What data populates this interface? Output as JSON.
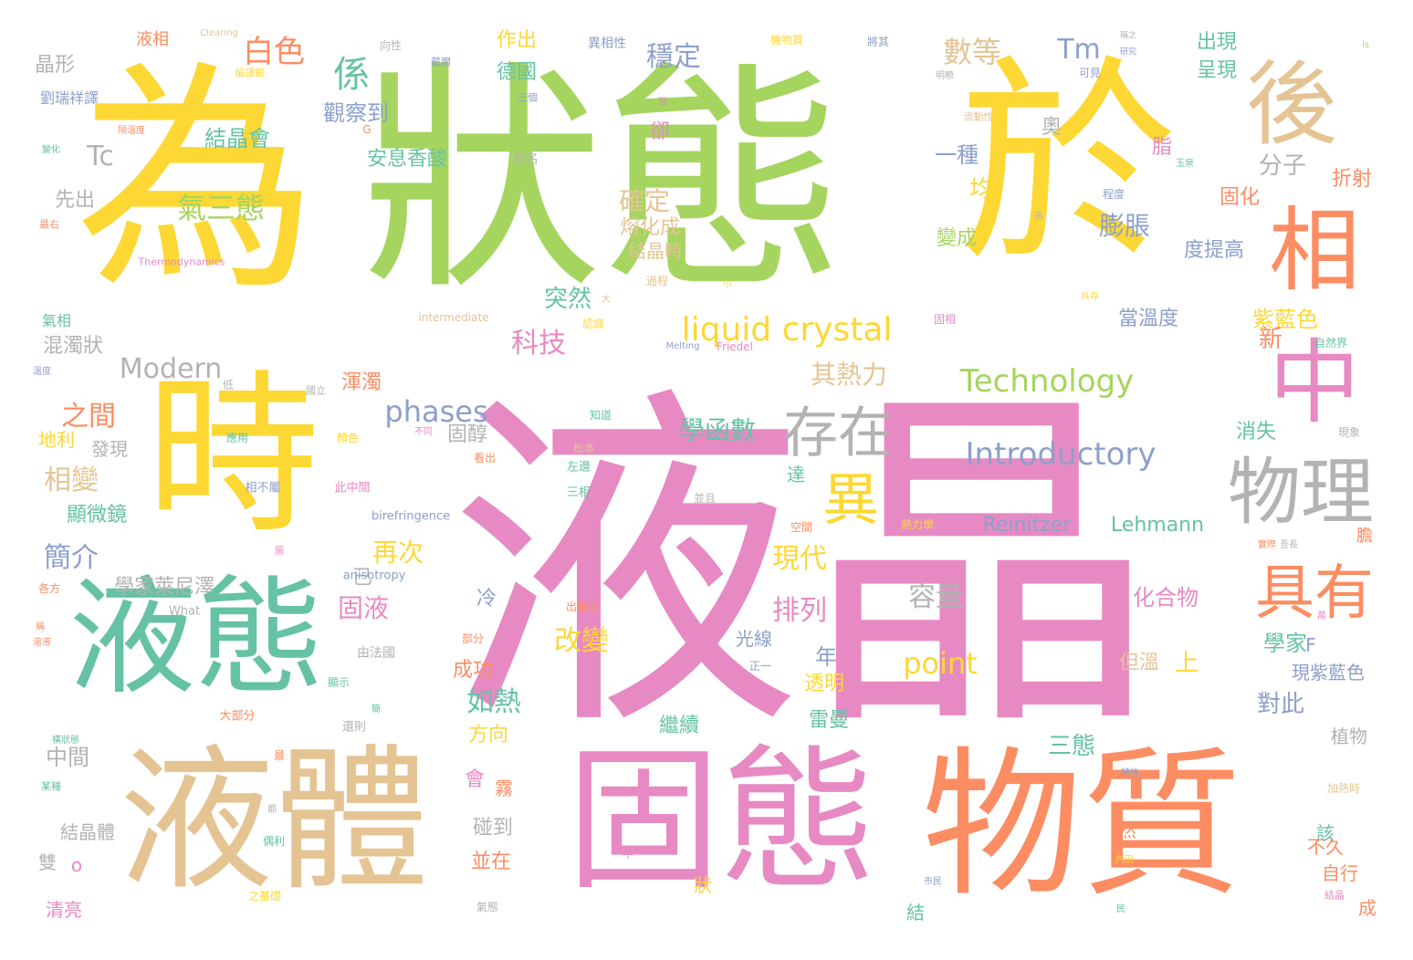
{
  "palette": [
    "#fdd835",
    "#a5d55f",
    "#e78ac3",
    "#fc8d62",
    "#66c2a5",
    "#e5c494",
    "#b3b3b3",
    "#8da0cb"
  ],
  "words": {
    "w01": {
      "text": "為"
    },
    "w02": {
      "text": "狀態"
    },
    "w03": {
      "text": "於"
    },
    "w04": {
      "text": "液晶"
    },
    "w05": {
      "text": "時"
    },
    "w06": {
      "text": "液態"
    },
    "w07": {
      "text": "液體"
    },
    "w08": {
      "text": "固態"
    },
    "w09": {
      "text": "物質"
    },
    "w10": {
      "text": "後"
    },
    "w11": {
      "text": "相"
    },
    "w12": {
      "text": "中"
    },
    "w13": {
      "text": "物理"
    },
    "w14": {
      "text": "存在"
    },
    "w15": {
      "text": "具有"
    },
    "w16": {
      "text": "異"
    },
    "w17": {
      "text": "係"
    },
    "w18": {
      "text": "liquid crystal"
    },
    "w19": {
      "text": "Technology"
    },
    "w20": {
      "text": "Introductory"
    },
    "w21": {
      "text": "phases"
    },
    "w22": {
      "text": "Modern"
    },
    "w23": {
      "text": "point"
    },
    "w24": {
      "text": "數等"
    },
    "w25": {
      "text": "穩定"
    },
    "w26": {
      "text": "白色"
    },
    "w27": {
      "text": "Tm"
    },
    "w28": {
      "text": "Tc"
    },
    "w29": {
      "text": "氣三態"
    },
    "w30": {
      "text": "Reinitzer"
    },
    "w31": {
      "text": "Lehmann"
    },
    "w32": {
      "text": "之間"
    },
    "w33": {
      "text": "相變"
    },
    "w34": {
      "text": "簡介"
    },
    "w35": {
      "text": "混濁狀"
    },
    "w36": {
      "text": "其熱力"
    },
    "w37": {
      "text": "學函數"
    },
    "w38": {
      "text": "膨脹"
    },
    "w39": {
      "text": "容量"
    },
    "w40": {
      "text": "化合物"
    },
    "w41": {
      "text": "現代"
    },
    "w42": {
      "text": "排列"
    },
    "w43": {
      "text": "改變"
    },
    "w44": {
      "text": "如熱"
    },
    "w45": {
      "text": "科技"
    },
    "w46": {
      "text": "固液"
    },
    "w47": {
      "text": "突然"
    },
    "w48": {
      "text": "紫藍色"
    },
    "w49": {
      "text": "學家萊尼澤"
    },
    "w50": {
      "text": "再次"
    },
    "w51": {
      "text": "確定"
    },
    "w52": {
      "text": "熔化成"
    },
    "w53": {
      "text": "結晶時"
    },
    "w54": {
      "text": "觀察到"
    },
    "w55": {
      "text": "安息香酸"
    },
    "w56": {
      "text": "結晶會"
    },
    "w57": {
      "text": "德國"
    },
    "w58": {
      "text": "作出"
    },
    "w59": {
      "text": "出現"
    },
    "w60": {
      "text": "呈現"
    },
    "w61": {
      "text": "分子"
    },
    "w62": {
      "text": "折射"
    },
    "w63": {
      "text": "固化"
    },
    "w64": {
      "text": "度提高"
    },
    "w65": {
      "text": "當溫度"
    },
    "w66": {
      "text": "變成"
    },
    "w67": {
      "text": "一種"
    },
    "w68": {
      "text": "均"
    },
    "w69": {
      "text": "新"
    },
    "w70": {
      "text": "消失"
    },
    "w71": {
      "text": "晶形"
    },
    "w72": {
      "text": "先出"
    },
    "w73": {
      "text": "劉瑞祥譯"
    },
    "w74": {
      "text": "液相"
    },
    "w75": {
      "text": "氣相"
    },
    "w76": {
      "text": "地利"
    },
    "w77": {
      "text": "發現"
    },
    "w78": {
      "text": "顯微鏡"
    },
    "w79": {
      "text": "中間"
    },
    "w80": {
      "text": "結晶體"
    },
    "w81": {
      "text": "清亮"
    },
    "w82": {
      "text": "雙"
    },
    "w83": {
      "text": "渾濁"
    },
    "w84": {
      "text": "固醇"
    },
    "w85": {
      "text": "已"
    },
    "w86": {
      "text": "冷"
    },
    "w87": {
      "text": "成功"
    },
    "w88": {
      "text": "方向"
    },
    "w89": {
      "text": "會"
    },
    "w90": {
      "text": "霧"
    },
    "w91": {
      "text": "碰到"
    },
    "w92": {
      "text": "並在"
    },
    "w93": {
      "text": "光線"
    },
    "w94": {
      "text": "年"
    },
    "w95": {
      "text": "透明"
    },
    "w96": {
      "text": "繼續"
    },
    "w97": {
      "text": "雷曼"
    },
    "w98": {
      "text": "對此"
    },
    "w99": {
      "text": "學家"
    },
    "w100": {
      "text": "上"
    },
    "w101": {
      "text": "但溫"
    },
    "w102": {
      "text": "三態"
    },
    "w103": {
      "text": "現紫藍色"
    },
    "w104": {
      "text": "植物"
    },
    "w105": {
      "text": "該"
    },
    "w106": {
      "text": "不久"
    },
    "w107": {
      "text": "自行"
    },
    "w108": {
      "text": "成"
    },
    "w109": {
      "text": "然"
    },
    "w110": {
      "text": "狀"
    },
    "w111": {
      "text": "結"
    },
    "w112": {
      "text": "卻"
    },
    "w113": {
      "text": "奧"
    },
    "w114": {
      "text": "脂"
    },
    "w115": {
      "text": "達"
    },
    "w116": {
      "text": "F"
    },
    "w117": {
      "text": "o"
    },
    "w118": {
      "text": "Thermodynamics"
    },
    "w119": {
      "text": "intermediate"
    },
    "w120": {
      "text": "Melting"
    },
    "w121": {
      "text": "Friedel"
    },
    "w122": {
      "text": "birefringence"
    },
    "w123": {
      "text": "anisotropy"
    },
    "w124": {
      "text": "What"
    },
    "w125": {
      "text": "Clearing"
    },
    "w126": {
      "text": "is"
    },
    "w127": {
      "text": "G"
    },
    "w128": {
      "text": "取名"
    },
    "w129": {
      "text": "三個"
    },
    "w130": {
      "text": "向性"
    },
    "w131": {
      "text": "異相性"
    },
    "w132": {
      "text": "機物質"
    },
    "w133": {
      "text": "將其"
    },
    "w134": {
      "text": "戴爾"
    },
    "w135": {
      "text": "可見"
    },
    "w136": {
      "text": "流動性"
    },
    "w137": {
      "text": "程度"
    },
    "w138": {
      "text": "過程"
    },
    "w139": {
      "text": "知道"
    },
    "w140": {
      "text": "松本"
    },
    "w141": {
      "text": "左邊"
    },
    "w142": {
      "text": "三相"
    },
    "w143": {
      "text": "相不屬"
    },
    "w144": {
      "text": "此中間"
    },
    "w145": {
      "text": "出鮮明"
    },
    "w146": {
      "text": "部分"
    },
    "w147": {
      "text": "由法國"
    },
    "w148": {
      "text": "顯示"
    },
    "w149": {
      "text": "大部分"
    },
    "w150": {
      "text": "還則"
    },
    "w151": {
      "text": "空間"
    },
    "w152": {
      "text": "熱力學"
    },
    "w153": {
      "text": "並且"
    },
    "w154": {
      "text": "正一"
    },
    "w155": {
      "text": "一中"
    },
    "w156": {
      "text": "固相"
    },
    "w157": {
      "text": "自然界"
    },
    "w158": {
      "text": "現象"
    },
    "w159": {
      "text": "加熱時"
    },
    "w160": {
      "text": "結晶"
    },
    "w161": {
      "text": "氣態"
    },
    "w162": {
      "text": "之基礎"
    },
    "w163": {
      "text": "偶利"
    },
    "w164": {
      "text": "某種"
    },
    "w165": {
      "text": "各方"
    },
    "w166": {
      "text": "應用"
    },
    "w167": {
      "text": "顏色"
    },
    "w168": {
      "text": "看出"
    },
    "w169": {
      "text": "不同"
    },
    "w170": {
      "text": "國立"
    },
    "w171": {
      "text": "低"
    },
    "w172": {
      "text": "認識"
    },
    "w173": {
      "text": "大"
    },
    "w174": {
      "text": "小"
    },
    "w175": {
      "text": "共存"
    },
    "w176": {
      "text": "高"
    },
    "w177": {
      "text": "玉泉"
    },
    "w178": {
      "text": "明瞭"
    },
    "w179": {
      "text": "問"
    },
    "w180": {
      "text": "隔溫度"
    },
    "w181": {
      "text": "變化"
    },
    "w182": {
      "text": "最右"
    },
    "w183": {
      "text": "溫度"
    },
    "w184": {
      "text": "稱"
    },
    "w185": {
      "text": "溶液"
    },
    "w186": {
      "text": "橫狀態"
    },
    "w187": {
      "text": "編譯館"
    },
    "w188": {
      "text": "稱之"
    },
    "w189": {
      "text": "萬"
    },
    "w190": {
      "text": "特性"
    },
    "w191": {
      "text": "實際"
    },
    "w192": {
      "text": "膽"
    },
    "w193": {
      "text": "民"
    },
    "w194": {
      "text": "內田"
    },
    "w195": {
      "text": "市民"
    },
    "w196": {
      "text": "吾長"
    },
    "w197": {
      "text": "最"
    },
    "w198": {
      "text": "都"
    },
    "w199": {
      "text": "研究"
    },
    "w200": {
      "text": "圖"
    },
    "w201": {
      "text": "簡"
    }
  }
}
